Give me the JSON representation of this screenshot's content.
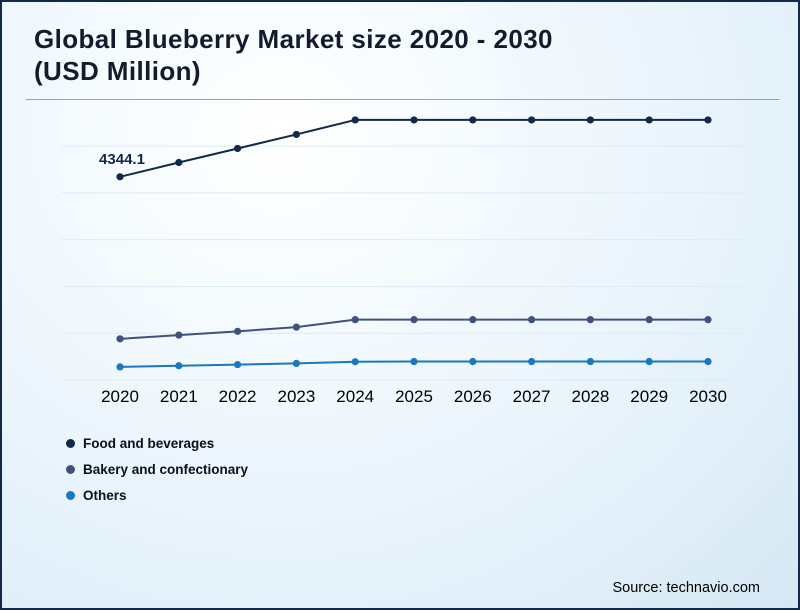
{
  "header": {
    "title_line1": "Global Blueberry Market size 2020 - 2030",
    "title_line2": "(USD Million)"
  },
  "footer": {
    "source": "Source: technavio.com"
  },
  "colors": {
    "border": "#12294a",
    "title_text": "#141b2d",
    "gridline": "#dcebf5",
    "axis_label": "#000000"
  },
  "chart_data": {
    "type": "line",
    "title": "Global Blueberry Market size 2020 - 2030 (USD Million)",
    "categories": [
      "2020",
      "2021",
      "2022",
      "2023",
      "2024",
      "2025",
      "2026",
      "2027",
      "2028",
      "2029",
      "2030"
    ],
    "xlabel": "",
    "ylabel": "USD Million",
    "ylim": [
      0,
      6200
    ],
    "grid": true,
    "legend_position": "bottom-left",
    "series": [
      {
        "name": "Food and beverages",
        "color": "#12294a",
        "values": [
          4344.1,
          4650,
          4950,
          5250,
          5560,
          5560,
          5560,
          5560,
          5560,
          5560,
          5560
        ]
      },
      {
        "name": "Bakery and confectionary",
        "color": "#41517f",
        "values": [
          880,
          960,
          1040,
          1130,
          1290,
          1290,
          1290,
          1290,
          1290,
          1290,
          1290
        ]
      },
      {
        "name": "Others",
        "color": "#1b78be",
        "values": [
          280,
          305,
          330,
          355,
          390,
          395,
          395,
          395,
          395,
          395,
          395
        ]
      }
    ],
    "annotations": [
      {
        "text": "4344.1",
        "series": "Food and beverages",
        "category": "2020"
      }
    ]
  }
}
